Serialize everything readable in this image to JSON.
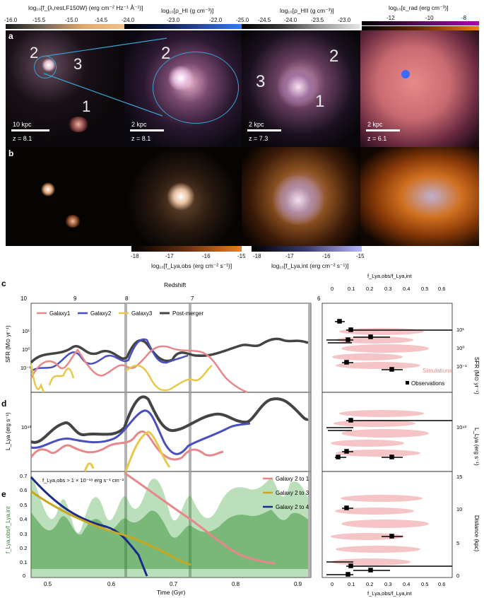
{
  "colorbars_top": [
    {
      "label": "log₁₀[f_{λ,rest,F150W} (erg cm⁻² Hz⁻¹ Å⁻¹)]",
      "ticks": [
        "-16.0",
        "-15.5",
        "-15.0",
        "-14.5"
      ],
      "end": "-24.0"
    },
    {
      "label": "log₁₀[ρ_HI (g cm⁻³)]",
      "ticks": [
        "-23.0",
        "-22.0"
      ],
      "end": ""
    },
    {
      "label": "log₁₀[ρ_HII (g cm⁻³)]",
      "ticks": [
        "-25.0",
        "-24.5",
        "-24.0",
        "-23.5",
        "-23.0"
      ],
      "end": ""
    },
    {
      "label": "log₁₀[ε_rad (erg cm⁻³)]",
      "ticks": [
        "-12",
        "-10",
        "-8"
      ],
      "end": ""
    }
  ],
  "row_a": {
    "letter": "a",
    "panels": [
      {
        "scale": "10 kpc",
        "z": "z = 8.1",
        "labels": [
          "2",
          "3",
          "1"
        ]
      },
      {
        "scale": "2 kpc",
        "z": "z = 8.1",
        "labels": [
          "2"
        ]
      },
      {
        "scale": "2 kpc",
        "z": "z = 7.3",
        "labels": [
          "3",
          "2",
          "1"
        ]
      },
      {
        "scale": "2 kpc",
        "z": "z = 6.1",
        "labels": []
      }
    ]
  },
  "row_b": {
    "letter": "b"
  },
  "colorbars_bottom": [
    {
      "label": "log₁₀[f_Lya,obs (erg cm⁻² s⁻¹)]",
      "ticks": [
        "-18",
        "-17",
        "-16",
        "-15"
      ]
    },
    {
      "label": "log₁₀[f_Lya,int (erg cm⁻² s⁻¹)]",
      "ticks": [
        "-18",
        "-17",
        "-16",
        "-15"
      ]
    }
  ],
  "panel_c": {
    "letter": "c",
    "redshift_label": "Redshift",
    "redshift_ticks": [
      "10",
      "9",
      "8",
      "7",
      "6"
    ],
    "ylabel": "SFR (M⊙ yr⁻¹)",
    "right_ylabel": "SFR (M⊙ yr⁻¹)",
    "legend": [
      "Galaxy1",
      "Galaxy2",
      "Galaxy3",
      "Post-merger"
    ],
    "yticks": [
      "10¹",
      "10⁰",
      "10⁻¹"
    ],
    "right_top_label": "f_Lya,obs/f_Lya,int",
    "right_top_ticks": [
      "0",
      "0.1",
      "0.2",
      "0.3",
      "0.4",
      "0.5",
      "0.6"
    ],
    "sim_label": "Simulations",
    "obs_label": "Observations"
  },
  "panel_d": {
    "letter": "d",
    "ylabel": "L_Lya (erg s⁻¹)",
    "ytick": "10⁴³"
  },
  "panel_e": {
    "letter": "e",
    "ylabel": "f_Lya,obs/f_Lya,int",
    "annotation": "f_Lya,obs > 1 × 10⁻¹⁸ erg s⁻¹ cm⁻²",
    "legend": [
      "Galaxy 2 to 1",
      "Galaxy 2 to 3",
      "Galaxy 2 to 4"
    ],
    "yticks": [
      "0",
      "0.1",
      "0.2",
      "0.3",
      "0.4",
      "0.5",
      "0.6",
      "0.7"
    ],
    "xticks": [
      "0.5",
      "0.6",
      "0.7",
      "0.8",
      "0.9"
    ],
    "xlabel": "Time (Gyr)",
    "right_ylabel": "Distance (kpc)",
    "right_yticks": [
      "0",
      "5",
      "10",
      "15"
    ],
    "right_xticks": [
      "0",
      "0.1",
      "0.2",
      "0.3",
      "0.4",
      "0.5",
      "0.6"
    ],
    "right_xlabel": "f_Lya,obs/f_Lya,int"
  },
  "colors": {
    "galaxy1": "#e8878a",
    "galaxy2": "#4a4fc0",
    "galaxy3": "#e8c84a",
    "postmerger": "#444444",
    "green": "#3aa33a",
    "navy": "#1a2a8a",
    "sim_pink": "#f2b6b8"
  }
}
